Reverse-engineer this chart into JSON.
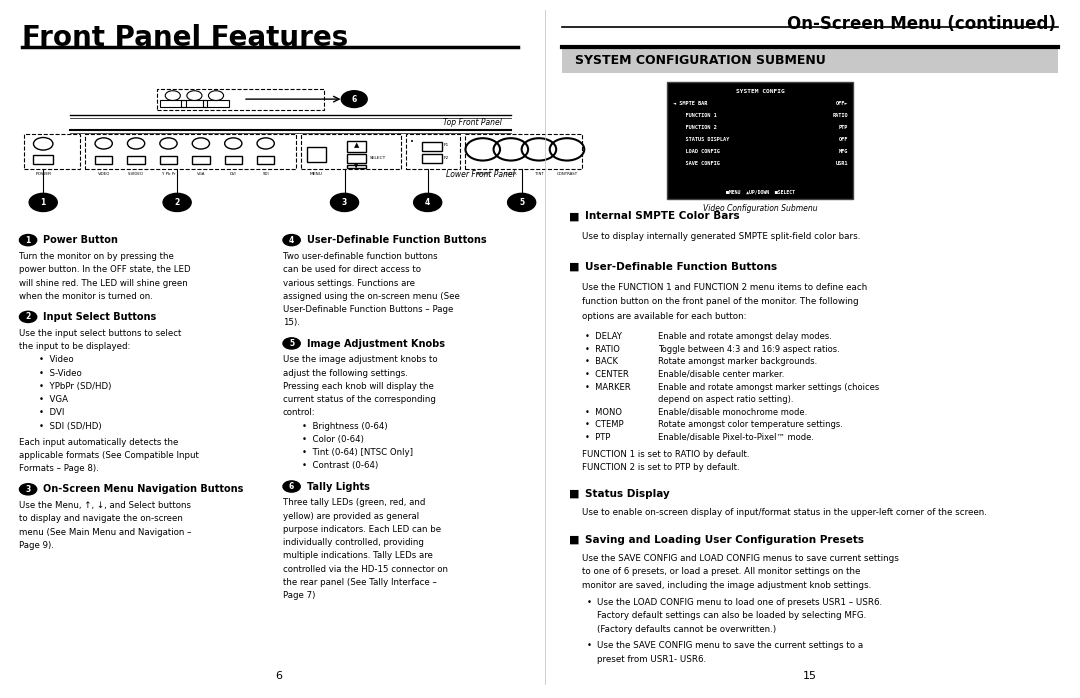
{
  "page_bg": "#ffffff",
  "left_title": "Front Panel Features",
  "right_title": "On-Screen Menu (continued)",
  "section_header": "SYSTEM CONFIGURATION SUBMENU",
  "section_header_bg": "#c8c8c8",
  "divider_color": "#000000",
  "function_options": [
    [
      "DELAY",
      "Enable and rotate amongst delay modes."
    ],
    [
      "RATIO",
      "Toggle between 4:3 and 16:9 aspect ratios."
    ],
    [
      "BACK",
      "Rotate amongst marker backgrounds."
    ],
    [
      "CENTER",
      "Enable/disable center marker."
    ],
    [
      "MARKER",
      "Enable and rotate amongst marker settings (choices depend on aspect ratio setting)."
    ],
    [
      "MONO",
      "Enable/disable monochrome mode."
    ],
    [
      "CTEMP",
      "Rotate amongst color temperature settings."
    ],
    [
      "PTP",
      "Enable/disable Pixel-to-Pixel™ mode."
    ]
  ],
  "function_defaults": [
    "FUNCTION 1 is set to RATIO by default.",
    "FUNCTION 2 is set to PTP by default."
  ],
  "preset_bullets": [
    "Use the LOAD CONFIG menu to load one of presets USR1 – USR6. Factory default settings can also be loaded by selecting MFG. (Factory defaults cannot be overwritten.)",
    "Use the SAVE CONFIG menu to save the current settings to a preset from USR1- USR6."
  ],
  "page_numbers": [
    "6",
    "15"
  ]
}
